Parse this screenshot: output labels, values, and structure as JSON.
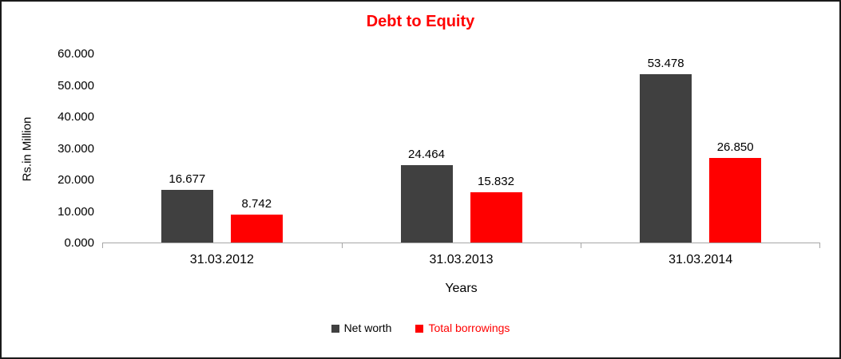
{
  "frame": {
    "border_color": "#1a1a1a",
    "background": "#ffffff"
  },
  "chart_data": {
    "type": "bar",
    "title": "Debt to Equity",
    "title_color": "#ff0000",
    "categories": [
      "31.03.2012",
      "31.03.2013",
      "31.03.2014"
    ],
    "series": [
      {
        "name": "Net worth",
        "color": "#404040",
        "legend_text_color": "#000000",
        "values": [
          16.677,
          24.464,
          53.478
        ]
      },
      {
        "name": "Total borrowings",
        "color": "#ff0000",
        "legend_text_color": "#ff0000",
        "values": [
          8.742,
          15.832,
          26.85
        ]
      }
    ],
    "value_label_decimals": 3,
    "value_label_color": "#000000",
    "xlabel": "Years",
    "ylabel": "Rs.in Million",
    "ylim": [
      0,
      60
    ],
    "ytick_step": 10,
    "ytick_labels": [
      "0.000",
      "10.000",
      "20.000",
      "30.000",
      "40.000",
      "50.000",
      "60.000"
    ],
    "grid": false,
    "legend_position": "bottom",
    "axis_color": "#a6a6a6",
    "text_color": "#000000"
  }
}
